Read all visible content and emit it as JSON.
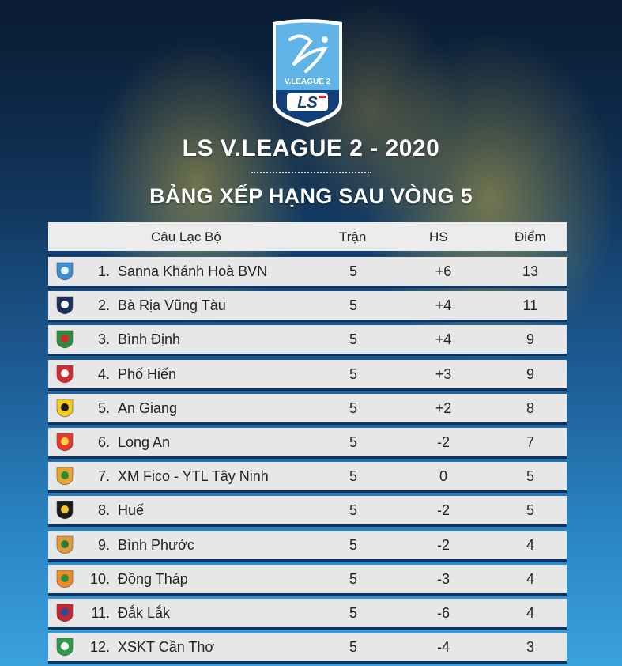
{
  "logo": {
    "league_text": "V.LEAGUE 2",
    "sponsor_text": "LS"
  },
  "title": "LS V.LEAGUE 2 - 2020",
  "subtitle": "BẢNG XẾP HẠNG SAU VÒNG 5",
  "table": {
    "headers": {
      "club": "Câu Lạc Bộ",
      "played": "Trận",
      "gd": "HS",
      "points": "Điểm"
    },
    "rows": [
      {
        "rank": "1.",
        "club": "Sanna Khánh Hoà BVN",
        "played": "5",
        "gd": "+6",
        "points": "13",
        "badge_icon": "khanh-hoa-badge-icon",
        "badge_color": "#3b8fd0",
        "badge_accent": "#e8f3ff"
      },
      {
        "rank": "2.",
        "club": "Bà Rịa Vũng Tàu",
        "played": "5",
        "gd": "+4",
        "points": "11",
        "badge_icon": "ba-ria-vung-tau-badge-icon",
        "badge_color": "#1d2f5f",
        "badge_accent": "#ffffff"
      },
      {
        "rank": "3.",
        "club": "Bình Định",
        "played": "5",
        "gd": "+4",
        "points": "9",
        "badge_icon": "binh-dinh-badge-icon",
        "badge_color": "#2e8b3d",
        "badge_accent": "#d9262a"
      },
      {
        "rank": "4.",
        "club": "Phố Hiến",
        "played": "5",
        "gd": "+3",
        "points": "9",
        "badge_icon": "pho-hien-badge-icon",
        "badge_color": "#d12a2f",
        "badge_accent": "#ffffff"
      },
      {
        "rank": "5.",
        "club": "An Giang",
        "played": "5",
        "gd": "+2",
        "points": "8",
        "badge_icon": "an-giang-badge-icon",
        "badge_color": "#f2cc1f",
        "badge_accent": "#1b1b1b"
      },
      {
        "rank": "6.",
        "club": "Long An",
        "played": "5",
        "gd": "-2",
        "points": "7",
        "badge_icon": "long-an-badge-icon",
        "badge_color": "#e23a2e",
        "badge_accent": "#ffd23a"
      },
      {
        "rank": "7.",
        "club": "XM Fico - YTL Tây Ninh",
        "played": "5",
        "gd": "0",
        "points": "5",
        "badge_icon": "tay-ninh-badge-icon",
        "badge_color": "#e7a62b",
        "badge_accent": "#2b8d3d"
      },
      {
        "rank": "8.",
        "club": "Huế",
        "played": "5",
        "gd": "-2",
        "points": "5",
        "badge_icon": "hue-badge-icon",
        "badge_color": "#1b1b1b",
        "badge_accent": "#f2c72b"
      },
      {
        "rank": "9.",
        "club": "Bình Phước",
        "played": "5",
        "gd": "-2",
        "points": "4",
        "badge_icon": "binh-phuoc-badge-icon",
        "badge_color": "#e39a3a",
        "badge_accent": "#2f7d3a"
      },
      {
        "rank": "10.",
        "club": "Đồng Tháp",
        "played": "5",
        "gd": "-3",
        "points": "4",
        "badge_icon": "dong-thap-badge-icon",
        "badge_color": "#f08a24",
        "badge_accent": "#2c8d3f"
      },
      {
        "rank": "11.",
        "club": "Đắk Lắk",
        "played": "5",
        "gd": "-6",
        "points": "4",
        "badge_icon": "dak-lak-badge-icon",
        "badge_color": "#c8262e",
        "badge_accent": "#2a4c9a"
      },
      {
        "rank": "12.",
        "club": "XSKT Cần Thơ",
        "played": "5",
        "gd": "-4",
        "points": "3",
        "badge_icon": "can-tho-badge-icon",
        "badge_color": "#2c9a47",
        "badge_accent": "#ffffff"
      }
    ]
  },
  "colors": {
    "row_background": "#e7e7e7",
    "header_background": "#ececec",
    "row_separator": "#0e3360",
    "text": "#222222",
    "title_text": "#ffffff"
  }
}
